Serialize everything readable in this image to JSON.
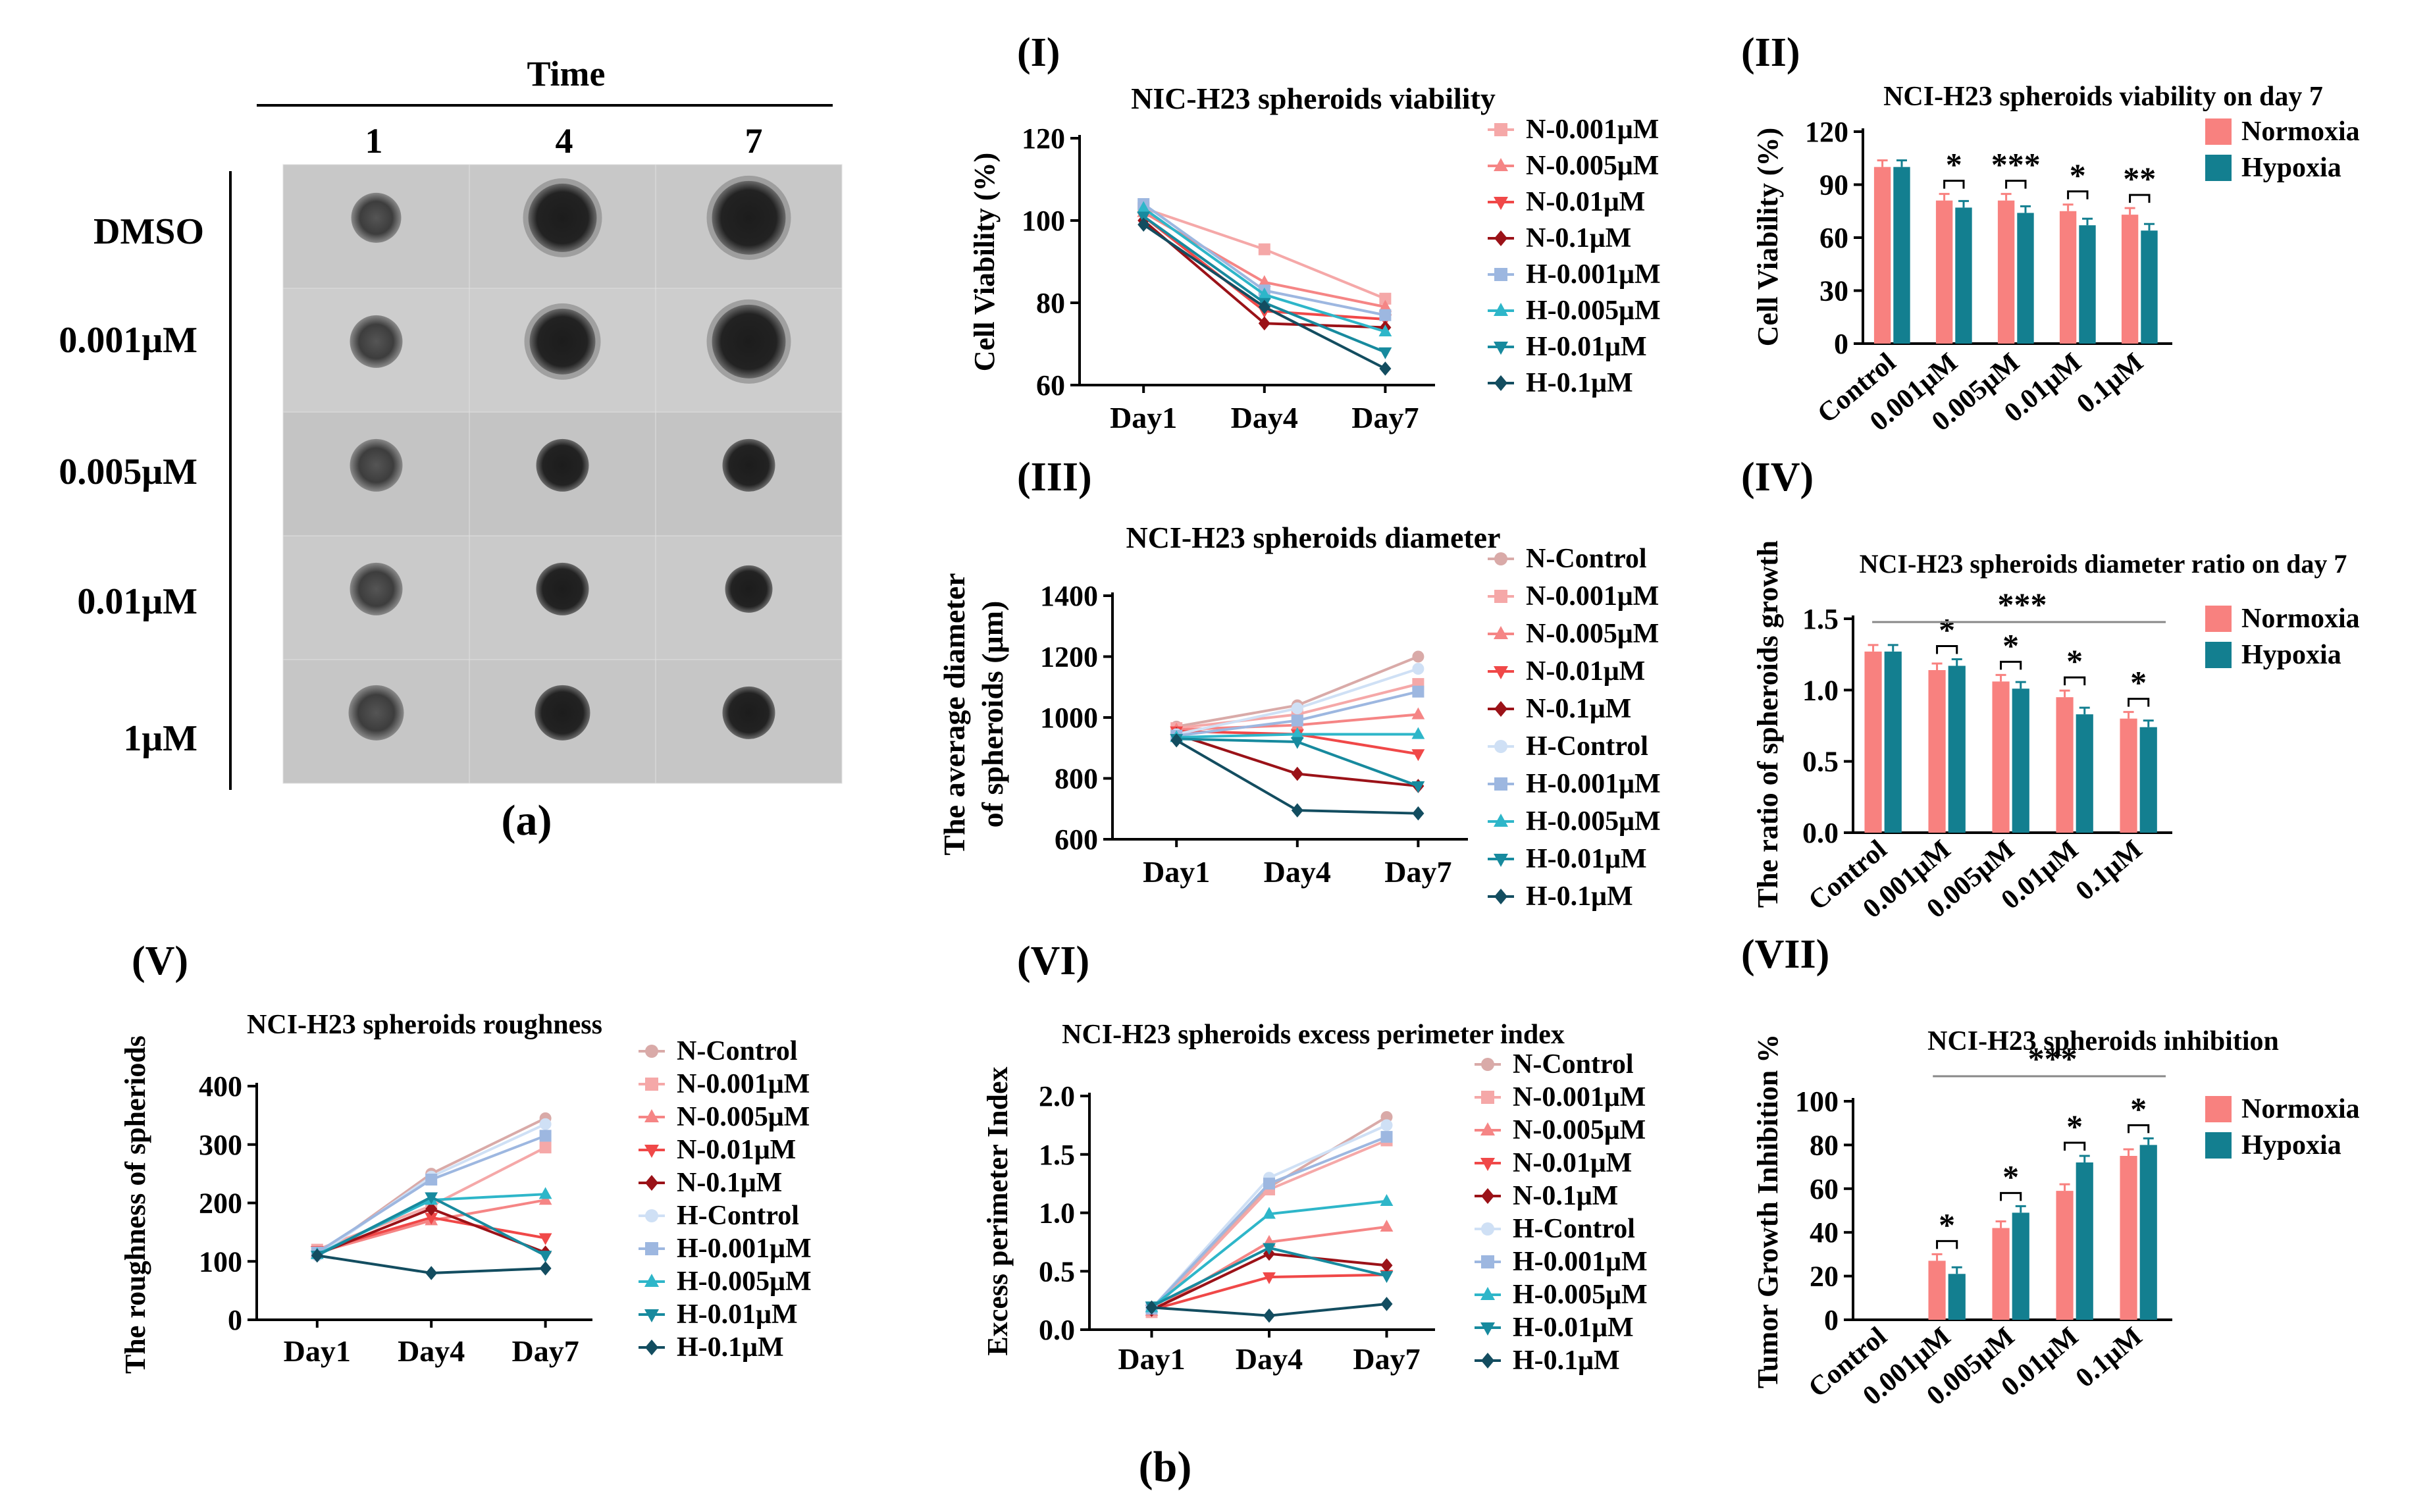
{
  "panel_a": {
    "time_label": "Time",
    "columns": [
      "1",
      "4",
      "7"
    ],
    "rows": [
      "DMSO",
      "0.001μM",
      "0.005μM",
      "0.01μM",
      "1μM"
    ],
    "caption": "(a)"
  },
  "panel_b_caption": "(b)",
  "colors": {
    "N-Control": "#d9aaa8",
    "N-0.001μM": "#f5a8a8",
    "N-0.005μM": "#f58585",
    "N-0.01μM": "#f04848",
    "N-0.1μM": "#9b1218",
    "H-Control": "#cfe0f5",
    "H-0.001μM": "#9db7e0",
    "H-0.005μM": "#2eb6c9",
    "H-0.01μM": "#178a9e",
    "H-0.1μM": "#134d60",
    "Normoxia": "#f8817f",
    "Hypoxia": "#137f90"
  },
  "chart_data": [
    {
      "id": "I",
      "panel": "(I)",
      "type": "line",
      "title": "NIC-H23 spheroids viability",
      "ylabel": "Cell Viability (%)",
      "xlabel": "",
      "x": [
        "Day1",
        "Day4",
        "Day7"
      ],
      "ylim": [
        60,
        120
      ],
      "yticks": [
        60,
        80,
        100,
        120
      ],
      "grid": false,
      "legend": "right",
      "series": [
        {
          "name": "N-0.001μM",
          "marker": "square",
          "values": [
            103,
            93,
            81
          ]
        },
        {
          "name": "N-0.005μM",
          "marker": "triangle",
          "values": [
            102,
            85,
            79
          ]
        },
        {
          "name": "N-0.01μM",
          "marker": "triangle-down",
          "values": [
            101,
            78,
            76
          ]
        },
        {
          "name": "N-0.1μM",
          "marker": "diamond",
          "values": [
            100,
            75,
            74
          ]
        },
        {
          "name": "H-0.001μM",
          "marker": "square",
          "values": [
            104,
            83,
            77
          ]
        },
        {
          "name": "H-0.005μM",
          "marker": "triangle",
          "values": [
            103,
            82,
            73
          ]
        },
        {
          "name": "H-0.01μM",
          "marker": "triangle-down",
          "values": [
            101,
            80,
            68
          ]
        },
        {
          "name": "H-0.1μM",
          "marker": "diamond",
          "values": [
            99,
            79,
            64
          ]
        }
      ]
    },
    {
      "id": "II",
      "panel": "(II)",
      "type": "bar",
      "title": "NCI-H23 spheroids viability on day 7",
      "ylabel": "Cell Viability (%)",
      "xlabel": "",
      "categories": [
        "Control",
        "0.001μM",
        "0.005μM",
        "0.01μM",
        "0.1μM"
      ],
      "ylim": [
        0,
        120
      ],
      "yticks": [
        0,
        30,
        60,
        90,
        120
      ],
      "legend": "top-right",
      "series": [
        {
          "name": "Normoxia",
          "values": [
            100,
            81,
            81,
            75,
            73
          ]
        },
        {
          "name": "Hypoxia",
          "values": [
            100,
            77,
            74,
            67,
            64
          ]
        }
      ],
      "significance": [
        "",
        "*",
        "***",
        "*",
        "**"
      ]
    },
    {
      "id": "III",
      "panel": "(III)",
      "type": "line",
      "title": "NCI-H23 spheroids diameter",
      "ylabel": "The average diameter of spheroids (μm)",
      "ylabel_lines": [
        "The average diameter",
        "of spheroids (μm)"
      ],
      "xlabel": "",
      "x": [
        "Day1",
        "Day4",
        "Day7"
      ],
      "ylim": [
        600,
        1400
      ],
      "yticks": [
        600,
        800,
        1000,
        1200,
        1400
      ],
      "legend": "right",
      "series": [
        {
          "name": "N-Control",
          "marker": "circle",
          "values": [
            970,
            1040,
            1200
          ]
        },
        {
          "name": "N-0.001μM",
          "marker": "square",
          "values": [
            965,
            1010,
            1110
          ]
        },
        {
          "name": "N-0.005μM",
          "marker": "triangle",
          "values": [
            960,
            975,
            1010
          ]
        },
        {
          "name": "N-0.01μM",
          "marker": "triangle-down",
          "values": [
            955,
            945,
            880
          ]
        },
        {
          "name": "N-0.1μM",
          "marker": "diamond",
          "values": [
            945,
            815,
            775
          ]
        },
        {
          "name": "H-Control",
          "marker": "circle",
          "values": [
            945,
            1030,
            1160
          ]
        },
        {
          "name": "H-0.001μM",
          "marker": "square",
          "values": [
            940,
            990,
            1085
          ]
        },
        {
          "name": "H-0.005μM",
          "marker": "triangle",
          "values": [
            935,
            945,
            945
          ]
        },
        {
          "name": "H-0.01μM",
          "marker": "triangle-down",
          "values": [
            930,
            920,
            775
          ]
        },
        {
          "name": "H-0.1μM",
          "marker": "diamond",
          "values": [
            925,
            695,
            685
          ]
        }
      ]
    },
    {
      "id": "IV",
      "panel": "(IV)",
      "type": "bar",
      "title": "NCI-H23 spheroids diameter ratio on day 7",
      "ylabel": "The ratio of spheroids growth",
      "xlabel": "",
      "categories": [
        "Control",
        "0.001μM",
        "0.005μM",
        "0.01μM",
        "0.1μM"
      ],
      "ylim": [
        0,
        1.5
      ],
      "yticks": [
        0.0,
        0.5,
        1.0,
        1.5
      ],
      "legend": "right",
      "series": [
        {
          "name": "Normoxia",
          "values": [
            1.27,
            1.14,
            1.06,
            0.95,
            0.8
          ]
        },
        {
          "name": "Hypoxia",
          "values": [
            1.27,
            1.17,
            1.01,
            0.83,
            0.74
          ]
        }
      ],
      "significance": [
        "",
        "*",
        "*",
        "*",
        "*"
      ],
      "overall_significance": "***"
    },
    {
      "id": "V",
      "panel": "(V)",
      "type": "line",
      "title": "NCI-H23 spheroids roughness",
      "ylabel": "The roughness of spheriods",
      "xlabel": "",
      "x": [
        "Day1",
        "Day4",
        "Day7"
      ],
      "ylim": [
        0,
        400
      ],
      "yticks": [
        0,
        100,
        200,
        300,
        400
      ],
      "legend": "right",
      "series": [
        {
          "name": "N-Control",
          "marker": "circle",
          "values": [
            110,
            250,
            345
          ]
        },
        {
          "name": "N-0.001μM",
          "marker": "square",
          "values": [
            120,
            195,
            295
          ]
        },
        {
          "name": "N-0.005μM",
          "marker": "triangle",
          "values": [
            115,
            170,
            205
          ]
        },
        {
          "name": "N-0.01μM",
          "marker": "triangle-down",
          "values": [
            118,
            175,
            140
          ]
        },
        {
          "name": "N-0.1μM",
          "marker": "diamond",
          "values": [
            112,
            190,
            115
          ]
        },
        {
          "name": "H-Control",
          "marker": "circle",
          "values": [
            110,
            245,
            335
          ]
        },
        {
          "name": "H-0.001μM",
          "marker": "square",
          "values": [
            115,
            240,
            315
          ]
        },
        {
          "name": "H-0.005μM",
          "marker": "triangle",
          "values": [
            112,
            205,
            215
          ]
        },
        {
          "name": "H-0.01μM",
          "marker": "triangle-down",
          "values": [
            110,
            210,
            110
          ]
        },
        {
          "name": "H-0.1μM",
          "marker": "diamond",
          "values": [
            110,
            80,
            88
          ]
        }
      ]
    },
    {
      "id": "VI",
      "panel": "(VI)",
      "type": "line",
      "title": "NCI-H23 spheroids excess perimeter index",
      "ylabel": "Excess perimeter Index",
      "xlabel": "",
      "x": [
        "Day1",
        "Day4",
        "Day7"
      ],
      "ylim": [
        0,
        2.0
      ],
      "yticks": [
        0.0,
        0.5,
        1.0,
        1.5,
        2.0
      ],
      "legend": "right",
      "series": [
        {
          "name": "N-Control",
          "marker": "circle",
          "values": [
            0.15,
            1.22,
            1.82
          ]
        },
        {
          "name": "N-0.001μM",
          "marker": "square",
          "values": [
            0.15,
            1.2,
            1.62
          ]
        },
        {
          "name": "N-0.005μM",
          "marker": "triangle",
          "values": [
            0.16,
            0.75,
            0.88
          ]
        },
        {
          "name": "N-0.01μM",
          "marker": "triangle-down",
          "values": [
            0.17,
            0.45,
            0.47
          ]
        },
        {
          "name": "N-0.1μM",
          "marker": "diamond",
          "values": [
            0.17,
            0.65,
            0.55
          ]
        },
        {
          "name": "H-Control",
          "marker": "circle",
          "values": [
            0.18,
            1.3,
            1.75
          ]
        },
        {
          "name": "H-0.001μM",
          "marker": "square",
          "values": [
            0.18,
            1.25,
            1.65
          ]
        },
        {
          "name": "H-0.005μM",
          "marker": "triangle",
          "values": [
            0.19,
            0.99,
            1.1
          ]
        },
        {
          "name": "H-0.01μM",
          "marker": "triangle-down",
          "values": [
            0.2,
            0.7,
            0.46
          ]
        },
        {
          "name": "H-0.1μM",
          "marker": "diamond",
          "values": [
            0.19,
            0.12,
            0.22
          ]
        }
      ]
    },
    {
      "id": "VII",
      "panel": "(VII)",
      "type": "bar",
      "title": "NCI-H23 spheroids inhibition",
      "ylabel": "Tumor Growth Inhibition %",
      "xlabel": "",
      "categories": [
        "Control",
        "0.001μM",
        "0.005μM",
        "0.01μM",
        "0.1μM"
      ],
      "ylim": [
        0,
        100
      ],
      "yticks": [
        0,
        20,
        40,
        60,
        80,
        100
      ],
      "legend": "right",
      "series": [
        {
          "name": "Normoxia",
          "values": [
            0,
            27,
            42,
            59,
            75
          ]
        },
        {
          "name": "Hypoxia",
          "values": [
            0,
            21,
            49,
            72,
            80
          ]
        }
      ],
      "significance": [
        "",
        "*",
        "*",
        "*",
        "*"
      ],
      "overall_significance": "***"
    }
  ]
}
